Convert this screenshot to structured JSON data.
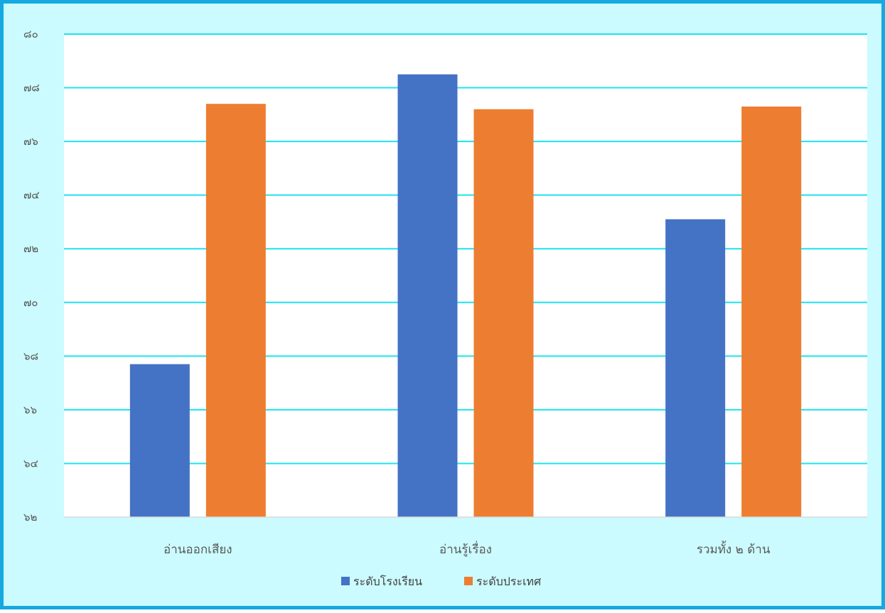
{
  "chart_data": {
    "type": "bar",
    "title": "",
    "xlabel": "",
    "ylabel": "",
    "categories": [
      "อ่านออกเสียง",
      "อ่านรู้เรื่อง",
      "รวมทั้ง ๒ ด้าน"
    ],
    "series": [
      {
        "name": "ระดับโรงเรียน",
        "color": "#4472c4",
        "values": [
          67.7,
          78.5,
          73.1
        ]
      },
      {
        "name": "ระดับประเทศ",
        "color": "#ed7d31",
        "values": [
          77.4,
          77.2,
          77.3
        ]
      }
    ],
    "ylim": [
      62,
      80
    ],
    "yticks": [
      62,
      64,
      66,
      68,
      70,
      72,
      74,
      76,
      78,
      80
    ],
    "ytick_labels": [
      "๖๒",
      "๖๔",
      "๖๖",
      "๖๘",
      "๗๐",
      "๗๒",
      "๗๔",
      "๗๖",
      "๗๘",
      "๘๐"
    ],
    "grid": true,
    "grid_color": "#1de3f0",
    "plot_background": "#ffffff",
    "outer_background": "#cbfbff",
    "border_color": "#14a9e0",
    "legend_position": "bottom"
  }
}
